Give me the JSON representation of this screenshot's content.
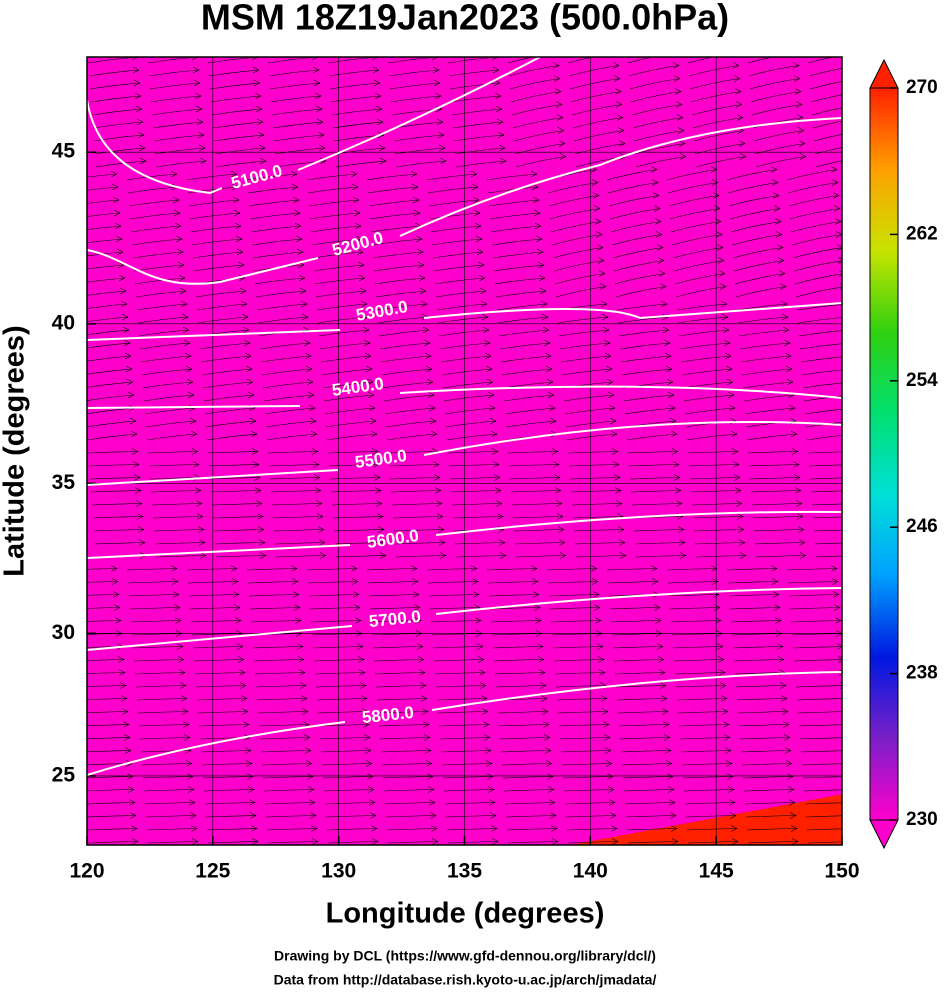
{
  "map": {
    "title": "MSM 18Z19Jan2023 (500.0hPa)",
    "projection": "mercator",
    "x_axis": {
      "label": "Longitude (degrees)",
      "lim": [
        120,
        150
      ],
      "ticks": [
        120,
        125,
        130,
        135,
        140,
        145,
        150
      ]
    },
    "y_axis": {
      "label": "Latitude  (degrees)",
      "lim": [
        22.5,
        47.6
      ],
      "ticks": [
        25,
        30,
        35,
        40,
        45
      ]
    },
    "grid": true,
    "colorbar": {
      "lim": [
        230,
        270
      ],
      "ticks": [
        230,
        238,
        246,
        254,
        262,
        270
      ],
      "colors": [
        "#ff00cc",
        "#7a20c8",
        "#0018e0",
        "#00a0ff",
        "#00e0d8",
        "#00e070",
        "#30d010",
        "#c8e400",
        "#ffa000",
        "#ff2000"
      ]
    },
    "contours": [
      {
        "value": 5100,
        "label": "5100.0"
      },
      {
        "value": 5200,
        "label": "5200.0"
      },
      {
        "value": 5300,
        "label": "5300.0"
      },
      {
        "value": 5400,
        "label": "5400.0"
      },
      {
        "value": 5500,
        "label": "5500.0"
      },
      {
        "value": 5600,
        "label": "5600.0"
      },
      {
        "value": 5700,
        "label": "5700.0"
      },
      {
        "value": 5800,
        "label": "5800.0"
      }
    ],
    "credits": [
      "Drawing by DCL (https://www.gfd-dennou.org/library/dcl/)",
      "Data from http://database.rish.kyoto-u.ac.jp/arch/jmadata/"
    ]
  }
}
